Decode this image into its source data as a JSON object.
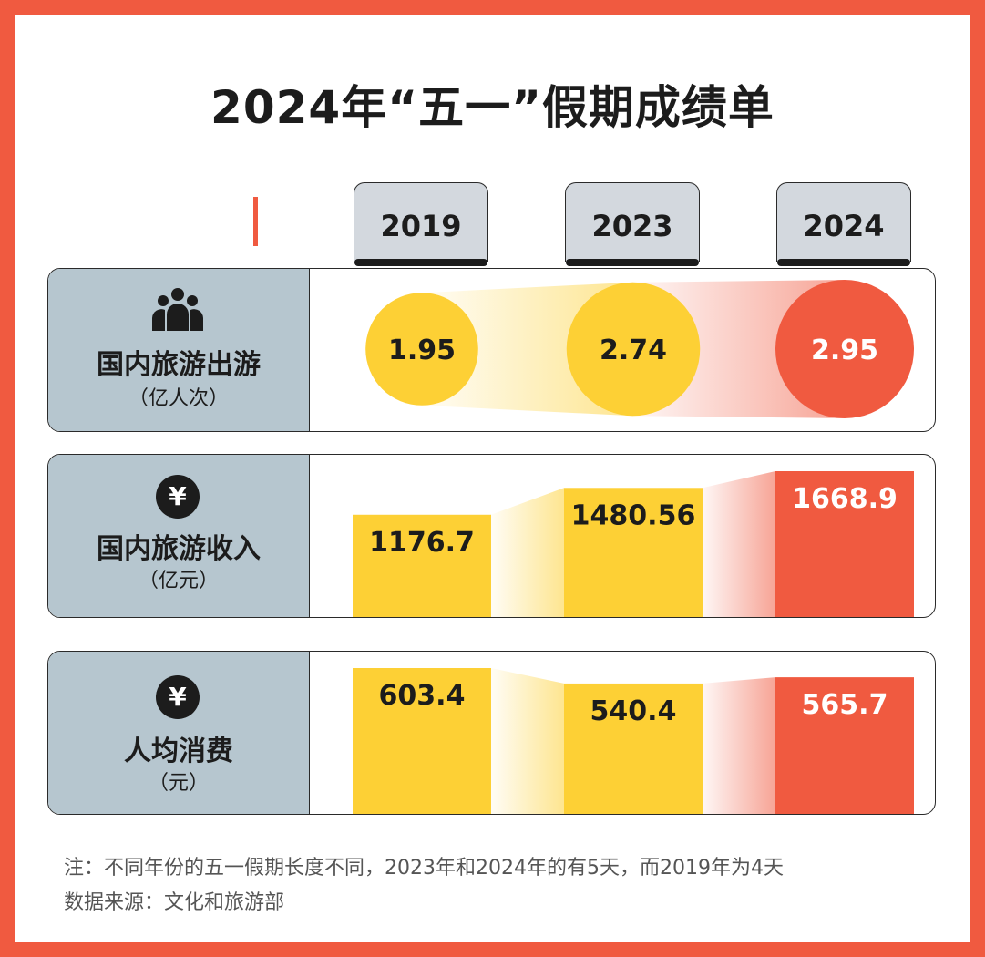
{
  "title": "2024年“五一”假期成绩单",
  "colors": {
    "background": "#f05a40",
    "yellow": "#fdd035",
    "red": "#f05a40",
    "label_bg": "#b6c6cf",
    "tab_bg": "#d3d8de"
  },
  "years": [
    "2019",
    "2023",
    "2024"
  ],
  "rows": [
    {
      "icon": "people-icon",
      "label": "国内旅游出游",
      "unit": "（亿人次）"
    },
    {
      "icon": "yen-icon",
      "icon_glyph": "¥",
      "label": "国内旅游收入",
      "unit": "（亿元）"
    },
    {
      "icon": "yen-icon",
      "icon_glyph": "¥",
      "label": "人均消费",
      "unit": "（元）"
    }
  ],
  "chart_data": [
    {
      "type": "bubble",
      "categories": [
        "2019",
        "2023",
        "2024"
      ],
      "values": [
        1.95,
        2.74,
        2.95
      ],
      "labels": [
        "1.95",
        "2.74",
        "2.95"
      ],
      "ylabel": "国内旅游出游（亿人次）"
    },
    {
      "type": "bar",
      "categories": [
        "2019",
        "2023",
        "2024"
      ],
      "values": [
        1176.7,
        1480.56,
        1668.9
      ],
      "labels": [
        "1176.7",
        "1480.56",
        "1668.9"
      ],
      "ylabel": "国内旅游收入（亿元）"
    },
    {
      "type": "bar",
      "categories": [
        "2019",
        "2023",
        "2024"
      ],
      "values": [
        603.4,
        540.4,
        565.7
      ],
      "labels": [
        "603.4",
        "540.4",
        "565.7"
      ],
      "ylabel": "人均消费（元）"
    }
  ],
  "notes": {
    "note": "注：不同年份的五一假期长度不同，2023年和2024年的有5天，而2019年为4天",
    "source": "数据来源：文化和旅游部"
  }
}
